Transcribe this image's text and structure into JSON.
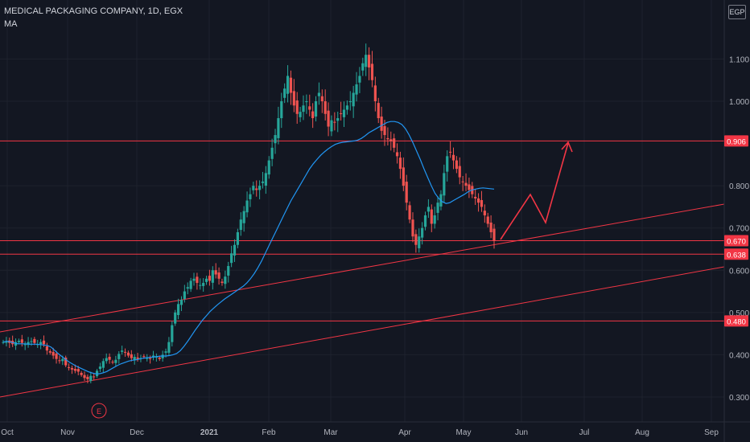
{
  "header": {
    "title": "MEDICAL PACKAGING COMPANY, 1D, EGX",
    "indicator": "MA",
    "currency": "EGP"
  },
  "chart_data": {
    "type": "candlestick",
    "x_tick_labels": [
      "Oct",
      "Nov",
      "Dec",
      "2021",
      "Feb",
      "Mar",
      "Apr",
      "May",
      "Jun",
      "Jul",
      "Aug",
      "Sep"
    ],
    "y_tick_labels": [
      "1.100",
      "1.000",
      "0.800",
      "0.700",
      "0.600",
      "0.500",
      "0.400",
      "0.300"
    ],
    "y_range": [
      0.27,
      1.21
    ],
    "price_lines": [
      {
        "label": "0.906",
        "value": 0.906
      },
      {
        "label": "0.670",
        "value": 0.67
      },
      {
        "label": "0.638",
        "value": 0.638
      },
      {
        "label": "0.480",
        "value": 0.48
      }
    ],
    "earnings_marker": "E",
    "candles_close": [
      0.43,
      0.432,
      0.428,
      0.425,
      0.43,
      0.433,
      0.428,
      0.425,
      0.43,
      0.432,
      0.428,
      0.425,
      0.43,
      0.425,
      0.41,
      0.405,
      0.398,
      0.39,
      0.385,
      0.39,
      0.375,
      0.37,
      0.365,
      0.362,
      0.36,
      0.352,
      0.345,
      0.342,
      0.35,
      0.348,
      0.362,
      0.372,
      0.385,
      0.392,
      0.388,
      0.382,
      0.388,
      0.402,
      0.41,
      0.405,
      0.398,
      0.392,
      0.395,
      0.39,
      0.392,
      0.395,
      0.392,
      0.39,
      0.398,
      0.395,
      0.39,
      0.4,
      0.408,
      0.43,
      0.47,
      0.5,
      0.52,
      0.53,
      0.55,
      0.56,
      0.575,
      0.58,
      0.57,
      0.565,
      0.57,
      0.58,
      0.575,
      0.6,
      0.59,
      0.58,
      0.57,
      0.585,
      0.61,
      0.64,
      0.66,
      0.69,
      0.72,
      0.74,
      0.765,
      0.78,
      0.8,
      0.79,
      0.8,
      0.81,
      0.83,
      0.86,
      0.89,
      0.92,
      0.96,
      1.0,
      1.03,
      1.06,
      1.02,
      0.99,
      0.97,
      0.975,
      0.99,
      1.0,
      0.98,
      0.96,
      1.0,
      1.02,
      1.0,
      0.97,
      0.94,
      0.955,
      0.95,
      0.96,
      0.97,
      0.98,
      0.99,
      1.0,
      1.02,
      1.04,
      1.06,
      1.09,
      1.11,
      1.08,
      1.05,
      1.0,
      0.96,
      0.93,
      0.92,
      0.91,
      0.905,
      0.89,
      0.87,
      0.84,
      0.8,
      0.76,
      0.72,
      0.68,
      0.66,
      0.68,
      0.7,
      0.73,
      0.75,
      0.71,
      0.73,
      0.76,
      0.78,
      0.83,
      0.87,
      0.88,
      0.86,
      0.84,
      0.82,
      0.81,
      0.8,
      0.79,
      0.78,
      0.77,
      0.76,
      0.75,
      0.73,
      0.71,
      0.69,
      0.67
    ],
    "ma_series": [
      0.43,
      0.432,
      0.43,
      0.428,
      0.426,
      0.426,
      0.426,
      0.425,
      0.425,
      0.425,
      0.424,
      0.423,
      0.422,
      0.418,
      0.41,
      0.402,
      0.395,
      0.388,
      0.382,
      0.377,
      0.372,
      0.368,
      0.364,
      0.36,
      0.357,
      0.355,
      0.355,
      0.357,
      0.36,
      0.365,
      0.37,
      0.375,
      0.379,
      0.382,
      0.385,
      0.387,
      0.388,
      0.39,
      0.392,
      0.393,
      0.394,
      0.395,
      0.396,
      0.397,
      0.397,
      0.398,
      0.4,
      0.403,
      0.41,
      0.42,
      0.432,
      0.445,
      0.458,
      0.47,
      0.482,
      0.492,
      0.502,
      0.51,
      0.518,
      0.525,
      0.532,
      0.538,
      0.544,
      0.55,
      0.556,
      0.562,
      0.57,
      0.58,
      0.592,
      0.606,
      0.622,
      0.64,
      0.658,
      0.676,
      0.694,
      0.712,
      0.73,
      0.748,
      0.765,
      0.78,
      0.795,
      0.81,
      0.825,
      0.84,
      0.852,
      0.862,
      0.872,
      0.88,
      0.887,
      0.893,
      0.898,
      0.901,
      0.903,
      0.904,
      0.905,
      0.906,
      0.908,
      0.912,
      0.918,
      0.925,
      0.93,
      0.935,
      0.94,
      0.945,
      0.95,
      0.952,
      0.952,
      0.95,
      0.945,
      0.935,
      0.92,
      0.902,
      0.882,
      0.862,
      0.84,
      0.82,
      0.8,
      0.782,
      0.77,
      0.762,
      0.758,
      0.76,
      0.765,
      0.77,
      0.775,
      0.78,
      0.786,
      0.79,
      0.792,
      0.794,
      0.795,
      0.794,
      0.793,
      0.792
    ]
  }
}
